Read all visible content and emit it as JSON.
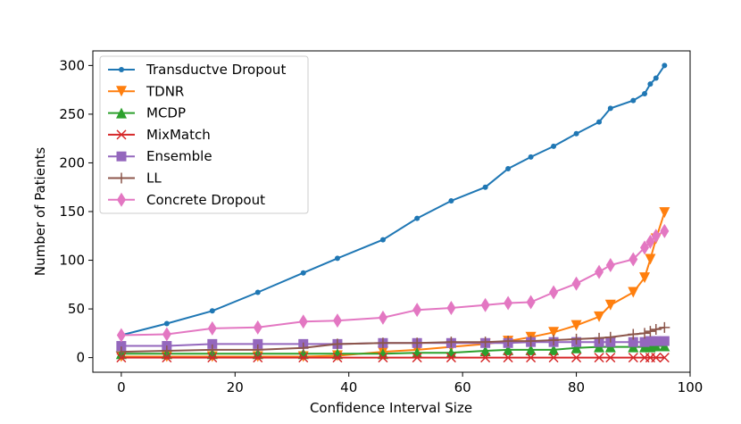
{
  "chart_data": {
    "type": "line",
    "title": "",
    "xlabel": "Confidence Interval Size",
    "ylabel": "Number of Patients",
    "xlim": [
      -5,
      100
    ],
    "ylim": [
      -15,
      315
    ],
    "xticks": [
      0,
      20,
      40,
      60,
      80,
      100
    ],
    "yticks": [
      0,
      50,
      100,
      150,
      200,
      250,
      300
    ],
    "grid": false,
    "legend_position": "top-left",
    "series": [
      {
        "name": "Transductve Dropout",
        "color": "#1f77b4",
        "marker": "point",
        "x": [
          0,
          8,
          16,
          24,
          32,
          38,
          46,
          52,
          58,
          64,
          68,
          72,
          76,
          80,
          84,
          86,
          90,
          92,
          93,
          94,
          95.5
        ],
        "y": [
          23,
          35,
          48,
          67,
          87,
          102,
          121,
          143,
          161,
          175,
          194,
          206,
          217,
          230,
          242,
          256,
          264,
          271,
          281,
          287,
          300
        ]
      },
      {
        "name": "TDNR",
        "color": "#ff7f0e",
        "marker": "triangle-down",
        "x": [
          0,
          8,
          16,
          24,
          32,
          38,
          46,
          52,
          58,
          64,
          68,
          72,
          76,
          80,
          84,
          86,
          90,
          92,
          93,
          94,
          95.5
        ],
        "y": [
          1,
          1,
          1,
          1,
          1,
          2,
          6,
          8,
          11,
          14,
          17,
          21,
          26,
          33,
          42,
          54,
          67,
          82,
          101,
          122,
          149
        ]
      },
      {
        "name": "MCDP",
        "color": "#2ca02c",
        "marker": "triangle-up",
        "x": [
          0,
          8,
          16,
          24,
          32,
          38,
          46,
          52,
          58,
          64,
          68,
          72,
          76,
          80,
          84,
          86,
          90,
          92,
          93,
          94,
          95.5
        ],
        "y": [
          4,
          4,
          4,
          4,
          4,
          4,
          4,
          5,
          5,
          7,
          8,
          8,
          8,
          10,
          11,
          11,
          11,
          11,
          11,
          12,
          12
        ]
      },
      {
        "name": "MixMatch",
        "color": "#d62728",
        "marker": "x",
        "x": [
          0,
          8,
          16,
          24,
          32,
          38,
          46,
          52,
          58,
          64,
          68,
          72,
          76,
          80,
          84,
          86,
          90,
          92,
          93,
          94,
          95.5
        ],
        "y": [
          0,
          0,
          0,
          0,
          0,
          0,
          0,
          0,
          0,
          0,
          0,
          0,
          0,
          0,
          0,
          0,
          0,
          0,
          0,
          0,
          0
        ]
      },
      {
        "name": "Ensemble",
        "color": "#9467bd",
        "marker": "square",
        "x": [
          0,
          8,
          16,
          24,
          32,
          38,
          46,
          52,
          58,
          64,
          68,
          72,
          76,
          80,
          84,
          86,
          90,
          92,
          93,
          94,
          95.5
        ],
        "y": [
          12,
          12,
          14,
          14,
          14,
          14,
          15,
          15,
          15,
          15,
          15,
          16,
          16,
          16,
          16,
          16,
          16,
          16,
          17,
          17,
          17
        ]
      },
      {
        "name": "LL",
        "color": "#8c564b",
        "marker": "plus",
        "x": [
          0,
          8,
          16,
          24,
          32,
          38,
          46,
          52,
          58,
          64,
          68,
          72,
          76,
          80,
          84,
          86,
          90,
          92,
          93,
          94,
          95.5
        ],
        "y": [
          6,
          7,
          8,
          8,
          10,
          14,
          15,
          15,
          16,
          16,
          17,
          17,
          18,
          19,
          20,
          21,
          24,
          25,
          27,
          29,
          31
        ]
      },
      {
        "name": "Concrete Dropout",
        "color": "#e377c2",
        "marker": "diamond",
        "x": [
          0,
          8,
          16,
          24,
          32,
          38,
          46,
          52,
          58,
          64,
          68,
          72,
          76,
          80,
          84,
          86,
          90,
          92,
          93,
          94,
          95.5
        ],
        "y": [
          23,
          24,
          30,
          31,
          37,
          38,
          41,
          49,
          51,
          54,
          56,
          57,
          67,
          76,
          88,
          95,
          101,
          113,
          119,
          125,
          130
        ]
      }
    ]
  }
}
